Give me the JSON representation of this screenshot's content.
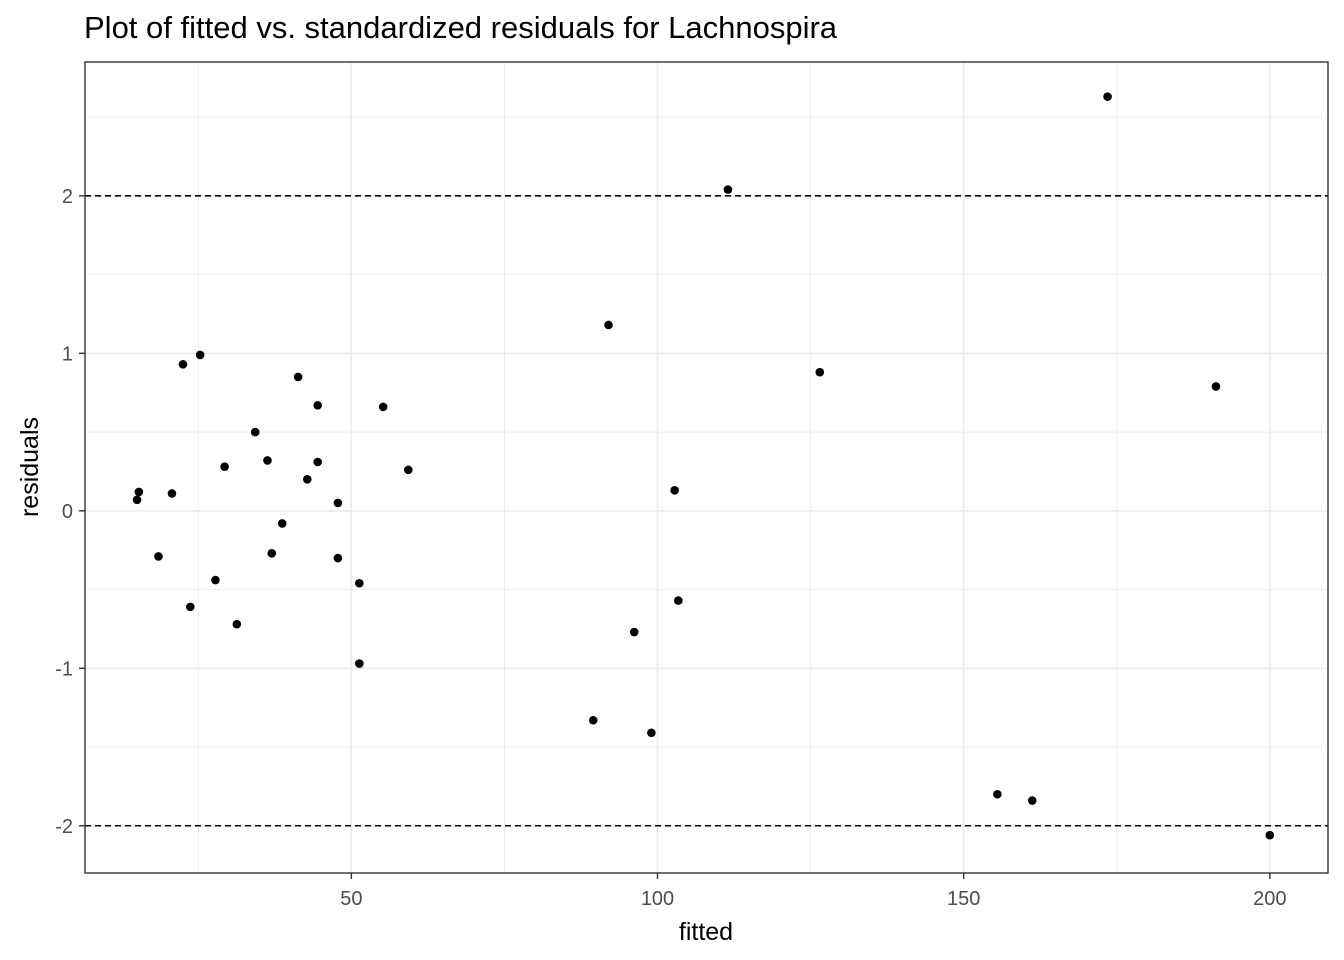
{
  "chart_data": {
    "type": "scatter",
    "title": "Plot of fitted vs. standardized residuals for Lachnospira",
    "xlabel": "fitted",
    "ylabel": "residuals",
    "xlim": [
      6.5,
      209.5
    ],
    "ylim": [
      -2.3,
      2.85
    ],
    "x_ticks": [
      50,
      100,
      150,
      200
    ],
    "x_tick_labels": [
      "50",
      "100",
      "150",
      "200"
    ],
    "x_minor_ticks": [
      25,
      75,
      125,
      175
    ],
    "y_ticks": [
      -2,
      -1,
      0,
      1,
      2
    ],
    "y_tick_labels": [
      "-2",
      "-1",
      "0",
      "1",
      "2"
    ],
    "y_minor_ticks": [
      -1.5,
      -0.5,
      0.5,
      1.5,
      2.5
    ],
    "reference_lines": [
      2,
      -2
    ],
    "grid": true,
    "colors": {
      "points": "#000000",
      "grid": "#ebebeb",
      "panel_border": "#333333"
    },
    "points": [
      {
        "x": 15.0,
        "y": 0.07
      },
      {
        "x": 15.3,
        "y": 0.12
      },
      {
        "x": 18.5,
        "y": -0.29
      },
      {
        "x": 20.7,
        "y": 0.11
      },
      {
        "x": 22.5,
        "y": 0.93
      },
      {
        "x": 23.7,
        "y": -0.61
      },
      {
        "x": 25.3,
        "y": 0.99
      },
      {
        "x": 27.8,
        "y": -0.44
      },
      {
        "x": 29.3,
        "y": 0.28
      },
      {
        "x": 31.3,
        "y": -0.72
      },
      {
        "x": 34.3,
        "y": 0.5
      },
      {
        "x": 36.3,
        "y": 0.32
      },
      {
        "x": 37.0,
        "y": -0.27
      },
      {
        "x": 38.7,
        "y": -0.08
      },
      {
        "x": 41.3,
        "y": 0.85
      },
      {
        "x": 42.8,
        "y": 0.2
      },
      {
        "x": 44.5,
        "y": 0.67
      },
      {
        "x": 44.5,
        "y": 0.31
      },
      {
        "x": 47.8,
        "y": 0.05
      },
      {
        "x": 47.8,
        "y": -0.3
      },
      {
        "x": 51.3,
        "y": -0.46
      },
      {
        "x": 51.3,
        "y": -0.97
      },
      {
        "x": 55.2,
        "y": 0.66
      },
      {
        "x": 59.3,
        "y": 0.26
      },
      {
        "x": 89.5,
        "y": -1.33
      },
      {
        "x": 92.0,
        "y": 1.18
      },
      {
        "x": 96.2,
        "y": -0.77
      },
      {
        "x": 99.0,
        "y": -1.41
      },
      {
        "x": 102.8,
        "y": 0.13
      },
      {
        "x": 103.4,
        "y": -0.57
      },
      {
        "x": 111.5,
        "y": 2.04
      },
      {
        "x": 126.5,
        "y": 0.88
      },
      {
        "x": 155.5,
        "y": -1.8
      },
      {
        "x": 161.2,
        "y": -1.84
      },
      {
        "x": 173.5,
        "y": 2.63
      },
      {
        "x": 191.2,
        "y": 0.79
      },
      {
        "x": 200.0,
        "y": -2.06
      }
    ]
  }
}
